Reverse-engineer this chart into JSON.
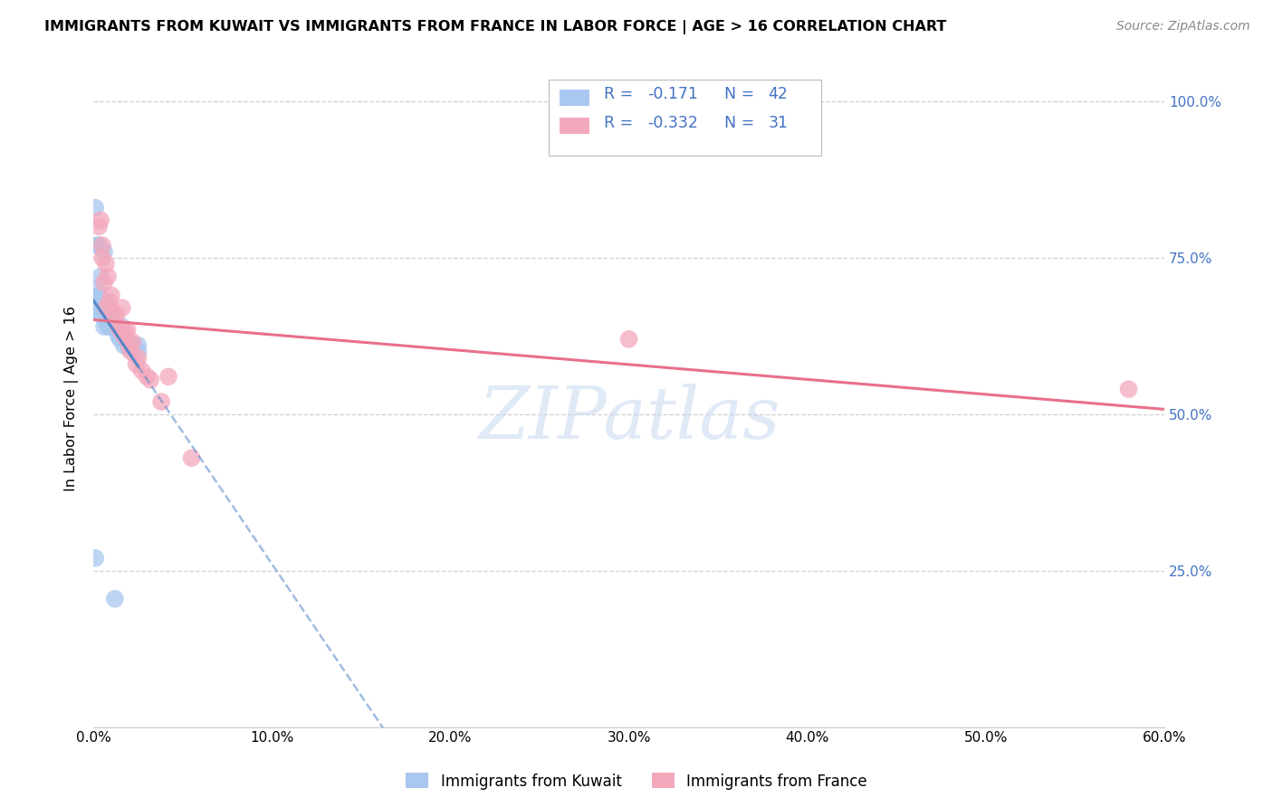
{
  "title": "IMMIGRANTS FROM KUWAIT VS IMMIGRANTS FROM FRANCE IN LABOR FORCE | AGE > 16 CORRELATION CHART",
  "source": "Source: ZipAtlas.com",
  "ylabel": "In Labor Force | Age > 16",
  "xlim": [
    0.0,
    0.6
  ],
  "ylim": [
    0.0,
    1.05
  ],
  "kuwait_R": -0.171,
  "kuwait_N": 42,
  "france_R": -0.332,
  "france_N": 31,
  "kuwait_color": "#a8c8f0",
  "france_color": "#f4a8bc",
  "kuwait_line_color": "#5585c8",
  "france_line_color": "#e8708a",
  "legend_text_color": "#4472c4",
  "kuwait_scatter_x": [
    0.001,
    0.002,
    0.002,
    0.003,
    0.003,
    0.003,
    0.004,
    0.004,
    0.004,
    0.005,
    0.005,
    0.005,
    0.006,
    0.006,
    0.006,
    0.007,
    0.007,
    0.007,
    0.008,
    0.008,
    0.009,
    0.009,
    0.01,
    0.01,
    0.011,
    0.012,
    0.013,
    0.014,
    0.015,
    0.016,
    0.017,
    0.018,
    0.02,
    0.022,
    0.025,
    0.025,
    0.001,
    0.002,
    0.003,
    0.006,
    0.001,
    0.012
  ],
  "kuwait_scatter_y": [
    0.665,
    0.68,
    0.7,
    0.68,
    0.685,
    0.69,
    0.66,
    0.675,
    0.72,
    0.66,
    0.67,
    0.665,
    0.68,
    0.66,
    0.64,
    0.675,
    0.65,
    0.66,
    0.67,
    0.64,
    0.66,
    0.645,
    0.64,
    0.64,
    0.655,
    0.645,
    0.635,
    0.625,
    0.62,
    0.64,
    0.61,
    0.62,
    0.605,
    0.61,
    0.61,
    0.6,
    0.83,
    0.77,
    0.77,
    0.76,
    0.27,
    0.205
  ],
  "france_scatter_x": [
    0.003,
    0.004,
    0.005,
    0.005,
    0.006,
    0.007,
    0.008,
    0.009,
    0.01,
    0.011,
    0.013,
    0.014,
    0.015,
    0.016,
    0.017,
    0.018,
    0.02,
    0.021,
    0.022,
    0.024,
    0.025,
    0.027,
    0.03,
    0.032,
    0.038,
    0.042,
    0.055,
    0.3,
    0.58,
    0.007,
    0.019
  ],
  "france_scatter_y": [
    0.8,
    0.81,
    0.77,
    0.75,
    0.71,
    0.74,
    0.72,
    0.68,
    0.69,
    0.66,
    0.66,
    0.64,
    0.635,
    0.67,
    0.625,
    0.63,
    0.61,
    0.6,
    0.615,
    0.58,
    0.59,
    0.57,
    0.56,
    0.555,
    0.52,
    0.56,
    0.43,
    0.62,
    0.54,
    0.67,
    0.635
  ],
  "yticks": [
    0.0,
    0.25,
    0.5,
    0.75,
    1.0
  ],
  "ytick_labels_right": [
    "",
    "25.0%",
    "50.0%",
    "75.0%",
    "100.0%"
  ],
  "xticks": [
    0.0,
    0.1,
    0.2,
    0.3,
    0.4,
    0.5,
    0.6
  ],
  "xtick_labels": [
    "0.0%",
    "10.0%",
    "20.0%",
    "30.0%",
    "40.0%",
    "50.0%",
    "60.0%"
  ],
  "background_color": "#ffffff",
  "grid_color": "#cccccc",
  "watermark": "ZIPatlas",
  "watermark_color": "#c8d8f0"
}
